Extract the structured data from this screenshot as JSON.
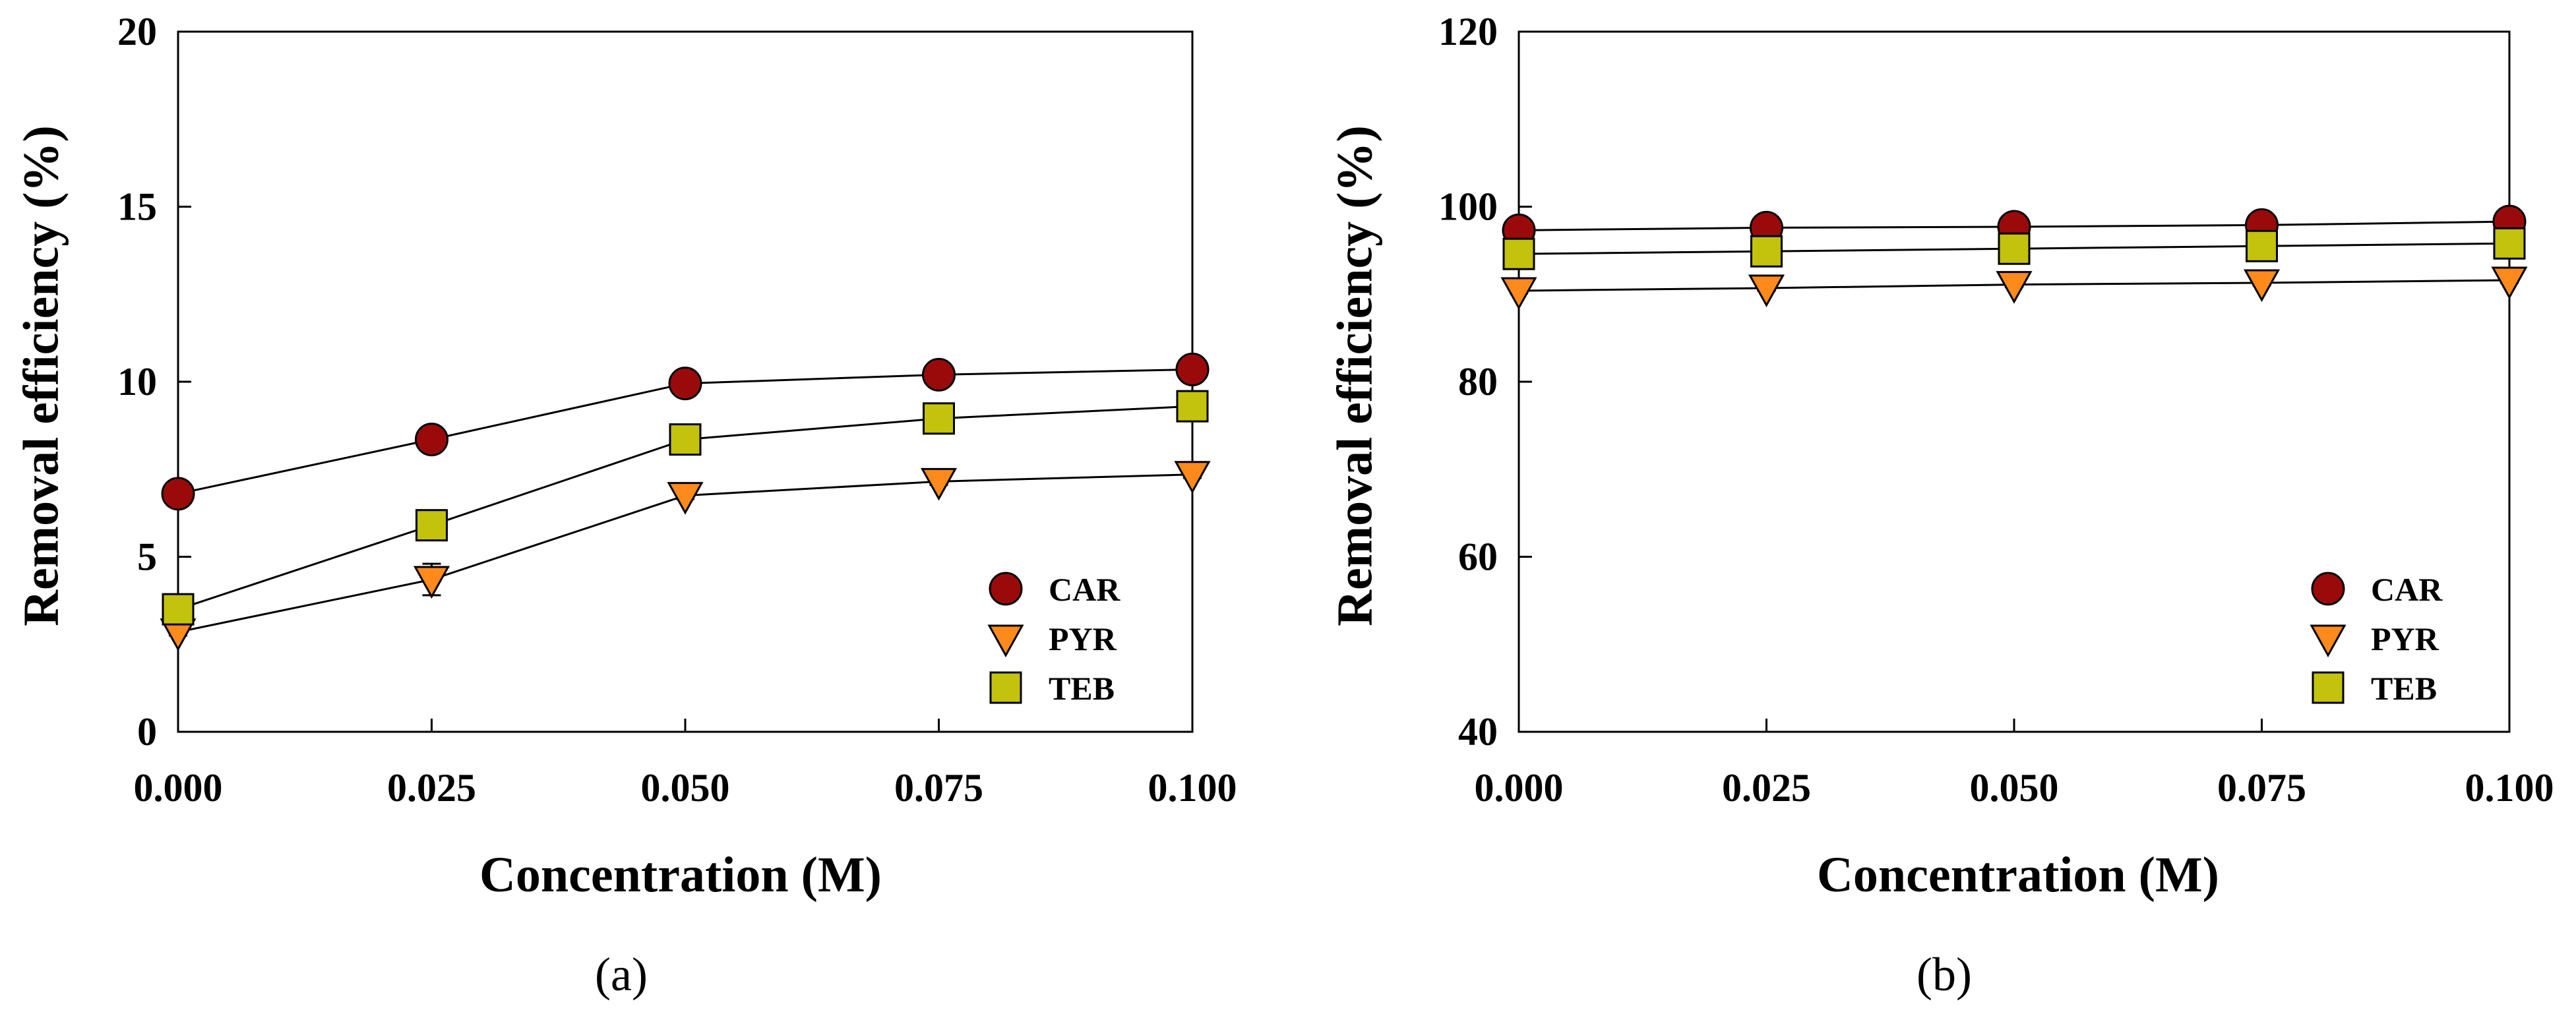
{
  "colors": {
    "CAR": "#9b0a0a",
    "PYR": "#ff8a1c",
    "TEB": "#c3c20c",
    "axis": "#000000",
    "background": "#ffffff"
  },
  "chart_data": [
    {
      "type": "scatter",
      "panel_label": "(a)",
      "xlabel": "Concentration (M)",
      "ylabel": "Removal efficiency (%)",
      "x": [
        0.0,
        0.025,
        0.05,
        0.075,
        0.1
      ],
      "x_tick_labels": [
        "0.000",
        "0.025",
        "0.050",
        "0.075",
        "0.100"
      ],
      "y_ticks": [
        0,
        5,
        10,
        15,
        20
      ],
      "y_tick_labels": [
        "0",
        "5",
        "10",
        "15",
        "20"
      ],
      "xlim": [
        0.0,
        0.1
      ],
      "ylim": [
        0,
        20
      ],
      "grid": false,
      "legend_position": "bottom-right",
      "lines_connect_points": true,
      "series": [
        {
          "name": "CAR",
          "marker": "circle",
          "values": [
            6.8,
            8.35,
            9.95,
            10.2,
            10.35
          ],
          "errors": [
            0.1,
            0.1,
            0.1,
            0.1,
            0.1
          ]
        },
        {
          "name": "PYR",
          "marker": "triangle-down",
          "values": [
            2.85,
            4.35,
            6.75,
            7.15,
            7.35
          ],
          "errors": [
            0.1,
            0.45,
            0.1,
            0.1,
            0.1
          ]
        },
        {
          "name": "TEB",
          "marker": "square",
          "values": [
            3.5,
            5.9,
            8.35,
            8.95,
            9.3
          ],
          "errors": [
            0.1,
            0.15,
            0.1,
            0.1,
            0.1
          ]
        }
      ]
    },
    {
      "type": "scatter",
      "panel_label": "(b)",
      "xlabel": "Concentration (M)",
      "ylabel": "Removal efficiency (%)",
      "x": [
        0.0,
        0.025,
        0.05,
        0.075,
        0.1
      ],
      "x_tick_labels": [
        "0.000",
        "0.025",
        "0.050",
        "0.075",
        "0.100"
      ],
      "y_ticks": [
        40,
        60,
        80,
        100,
        120
      ],
      "y_tick_labels": [
        "40",
        "60",
        "80",
        "100",
        "120"
      ],
      "xlim": [
        0.0,
        0.1
      ],
      "ylim": [
        40,
        120
      ],
      "grid": false,
      "legend_position": "bottom-right",
      "lines_connect_points": true,
      "series": [
        {
          "name": "CAR",
          "marker": "circle",
          "values": [
            97.3,
            97.6,
            97.7,
            97.9,
            98.3
          ],
          "errors": [
            0.3,
            0.3,
            0.3,
            0.3,
            0.3
          ]
        },
        {
          "name": "PYR",
          "marker": "triangle-down",
          "values": [
            90.4,
            90.7,
            91.1,
            91.3,
            91.6
          ],
          "errors": [
            0.3,
            0.3,
            0.3,
            0.3,
            0.3
          ]
        },
        {
          "name": "TEB",
          "marker": "square",
          "values": [
            94.6,
            94.9,
            95.2,
            95.5,
            95.8
          ],
          "errors": [
            0.3,
            0.3,
            0.3,
            0.3,
            0.3
          ]
        }
      ]
    }
  ]
}
